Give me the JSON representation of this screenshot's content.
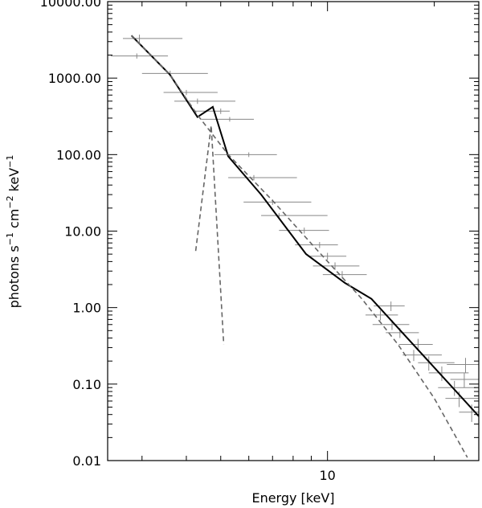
{
  "chart_data": {
    "type": "line",
    "title": "",
    "xlabel": "Energy [keV]",
    "ylabel": {
      "parts": [
        {
          "text": "photons s"
        },
        {
          "text": "−1",
          "sup": true
        },
        {
          "text": " cm"
        },
        {
          "text": "−2",
          "sup": true
        },
        {
          "text": " keV"
        },
        {
          "text": "−1",
          "sup": true
        }
      ]
    },
    "x_scale": "log",
    "y_scale": "log",
    "xlim": [
      2.4,
      26.7
    ],
    "ylim": [
      0.01,
      10000
    ],
    "x_ticks": [
      {
        "value": 10,
        "label": "10"
      }
    ],
    "y_ticks": [
      {
        "value": 0.01,
        "label": "0.01"
      },
      {
        "value": 0.1,
        "label": "0.10"
      },
      {
        "value": 1,
        "label": "1.00"
      },
      {
        "value": 10,
        "label": "10.00"
      },
      {
        "value": 100,
        "label": "100.00"
      },
      {
        "value": 1000,
        "label": "1000.00"
      },
      {
        "value": 10000,
        "label": "10000.00"
      }
    ],
    "grid": false,
    "series": [
      {
        "style": "solid",
        "color": "#000000",
        "points": [
          [
            2.8,
            3600
          ],
          [
            3.6,
            1100
          ],
          [
            4.3,
            310
          ],
          [
            4.75,
            420
          ],
          [
            5.25,
            95
          ],
          [
            6.5,
            30
          ],
          [
            8.7,
            5.0
          ],
          [
            11.2,
            2.1
          ],
          [
            13.3,
            1.3
          ],
          [
            26.7,
            0.038
          ]
        ]
      },
      {
        "style": "dashed",
        "color": "#666666",
        "points": [
          [
            2.8,
            3600
          ],
          [
            3.6,
            1100
          ],
          [
            4.3,
            330
          ],
          [
            5.25,
            100
          ],
          [
            7.0,
            25
          ],
          [
            9.4,
            5.5
          ],
          [
            12.5,
            1.3
          ],
          [
            15.8,
            0.33
          ],
          [
            20.0,
            0.065
          ],
          [
            24.8,
            0.011
          ]
        ]
      },
      {
        "style": "dashed",
        "color": "#666666",
        "points": [
          [
            4.25,
            5.5
          ],
          [
            4.7,
            240
          ],
          [
            5.1,
            0.33
          ]
        ]
      }
    ],
    "error_bar_color": "#888888",
    "data_points": [
      {
        "x": 2.95,
        "xlo": 2.65,
        "xhi": 3.9,
        "y": 3300,
        "ylo": 2900,
        "yhi": 3700
      },
      {
        "x": 2.9,
        "xlo": 2.45,
        "xhi": 3.55,
        "y": 1950,
        "ylo": 1800,
        "yhi": 2100
      },
      {
        "x": 3.6,
        "xlo": 3.0,
        "xhi": 4.6,
        "y": 1150,
        "ylo": 1050,
        "yhi": 1250
      },
      {
        "x": 4.0,
        "xlo": 3.45,
        "xhi": 4.9,
        "y": 650,
        "ylo": 600,
        "yhi": 700
      },
      {
        "x": 4.3,
        "xlo": 3.7,
        "xhi": 5.5,
        "y": 500,
        "ylo": 460,
        "yhi": 540
      },
      {
        "x": 5.0,
        "xlo": 4.2,
        "xhi": 5.3,
        "y": 370,
        "ylo": 340,
        "yhi": 400
      },
      {
        "x": 5.3,
        "xlo": 4.4,
        "xhi": 6.2,
        "y": 290,
        "ylo": 270,
        "yhi": 310
      },
      {
        "x": 6.0,
        "xlo": 4.8,
        "xhi": 7.2,
        "y": 100,
        "ylo": 93,
        "yhi": 107
      },
      {
        "x": 6.2,
        "xlo": 5.25,
        "xhi": 8.2,
        "y": 50,
        "ylo": 46,
        "yhi": 54
      },
      {
        "x": 7.0,
        "xlo": 5.8,
        "xhi": 9.0,
        "y": 24,
        "ylo": 22,
        "yhi": 26
      },
      {
        "x": 7.3,
        "xlo": 6.5,
        "xhi": 10.0,
        "y": 16,
        "ylo": 14.8,
        "yhi": 17.2
      },
      {
        "x": 8.6,
        "xlo": 7.3,
        "xhi": 10.1,
        "y": 10.2,
        "ylo": 9.3,
        "yhi": 11.1
      },
      {
        "x": 9.5,
        "xlo": 8.1,
        "xhi": 10.7,
        "y": 6.6,
        "ylo": 6.0,
        "yhi": 7.2
      },
      {
        "x": 10.0,
        "xlo": 8.8,
        "xhi": 11.3,
        "y": 4.7,
        "ylo": 4.2,
        "yhi": 5.2
      },
      {
        "x": 10.5,
        "xlo": 9.1,
        "xhi": 12.3,
        "y": 3.5,
        "ylo": 3.1,
        "yhi": 3.9
      },
      {
        "x": 11.0,
        "xlo": 9.7,
        "xhi": 12.9,
        "y": 2.7,
        "ylo": 2.4,
        "yhi": 3.0
      },
      {
        "x": 15.1,
        "xlo": 13.5,
        "xhi": 16.5,
        "y": 1.05,
        "ylo": 0.9,
        "yhi": 1.2
      },
      {
        "x": 14.1,
        "xlo": 12.8,
        "xhi": 15.8,
        "y": 0.8,
        "ylo": 0.68,
        "yhi": 0.92
      },
      {
        "x": 15.2,
        "xlo": 13.4,
        "xhi": 17.0,
        "y": 0.6,
        "ylo": 0.51,
        "yhi": 0.69
      },
      {
        "x": 16.0,
        "xlo": 14.6,
        "xhi": 18.1,
        "y": 0.47,
        "ylo": 0.4,
        "yhi": 0.54
      },
      {
        "x": 18.0,
        "xlo": 15.9,
        "xhi": 19.8,
        "y": 0.33,
        "ylo": 0.27,
        "yhi": 0.39
      },
      {
        "x": 17.5,
        "xlo": 16.3,
        "xhi": 21.0,
        "y": 0.24,
        "ylo": 0.2,
        "yhi": 0.28
      },
      {
        "x": 19.3,
        "xlo": 18.0,
        "xhi": 22.8,
        "y": 0.19,
        "ylo": 0.15,
        "yhi": 0.23
      },
      {
        "x": 24.5,
        "xlo": 21.7,
        "xhi": 26.7,
        "y": 0.18,
        "ylo": 0.14,
        "yhi": 0.22
      },
      {
        "x": 21.0,
        "xlo": 19.3,
        "xhi": 25.0,
        "y": 0.14,
        "ylo": 0.11,
        "yhi": 0.17
      },
      {
        "x": 24.3,
        "xlo": 22.2,
        "xhi": 26.7,
        "y": 0.115,
        "ylo": 0.09,
        "yhi": 0.14
      },
      {
        "x": 22.8,
        "xlo": 20.5,
        "xhi": 26.3,
        "y": 0.09,
        "ylo": 0.07,
        "yhi": 0.11
      },
      {
        "x": 23.5,
        "xlo": 21.5,
        "xhi": 26.7,
        "y": 0.065,
        "ylo": 0.05,
        "yhi": 0.08
      },
      {
        "x": 25.5,
        "xlo": 23.5,
        "xhi": 26.7,
        "y": 0.043,
        "ylo": 0.032,
        "yhi": 0.054
      }
    ]
  }
}
